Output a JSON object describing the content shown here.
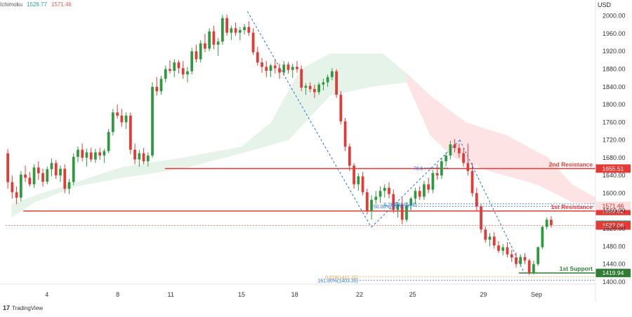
{
  "header": {
    "indicator": "Ichimoku",
    "value_a": "1528.77",
    "value_b": "1571.46",
    "currency": "USD"
  },
  "branding": {
    "name": "TradingView",
    "icon": "tradingview-logo-icon"
  },
  "colors": {
    "bull": "#26a69a",
    "bull_candle": "#2e9a3f",
    "bear": "#e53935",
    "resistance": "#e53935",
    "support": "#2e7d32",
    "fib_blue": "#1e6fd9",
    "fib_orange": "#f2a03d",
    "cloud_green": "#e3f2e6",
    "cloud_red": "#fde0e0"
  },
  "chart_data": {
    "type": "candlestick",
    "ylim": [
      1395,
      2020
    ],
    "y_ticks": [
      "2000.00",
      "1960.00",
      "1920.00",
      "1880.00",
      "1840.00",
      "1800.00",
      "1760.00",
      "1720.00",
      "1680.00",
      "1640.00",
      "1600.00",
      "1560.00",
      "1520.00",
      "1480.00",
      "1440.00",
      "1400.00"
    ],
    "x_ticks": [
      "4",
      "8",
      "11",
      "15",
      "18",
      "22",
      "25",
      "29",
      "Sep"
    ],
    "levels": [
      {
        "label": "2nd Resistance",
        "price": "1655.51",
        "kind": "resistance"
      },
      {
        "label": "1st Resistance",
        "price": "1559.82",
        "kind": "resistance"
      },
      {
        "label": "1st Support",
        "price": "1419.94",
        "kind": "support"
      }
    ],
    "price_tags": [
      {
        "price": "1571.46",
        "kind": "cloud"
      },
      {
        "price": "1528.77",
        "kind": "last"
      },
      {
        "price": "1527.06",
        "kind": "ref"
      }
    ],
    "fib_labels": [
      {
        "text": "0.786(1575.76)",
        "price": 1575.76,
        "color": "blue"
      },
      {
        "text": "50.00%(1570.37)",
        "price": 1570.37,
        "color": "blue"
      },
      {
        "text": "0.618(1411.20)",
        "price": 1411.2,
        "color": "orange"
      },
      {
        "text": "161.80%(1403.35)",
        "price": 1403.35,
        "color": "blue"
      },
      {
        "text": "78.6",
        "price": 1657,
        "color": "blue"
      }
    ],
    "candles": [
      [
        1690,
        1700,
        1610,
        1625
      ],
      [
        1625,
        1640,
        1588,
        1602
      ],
      [
        1602,
        1615,
        1575,
        1590
      ],
      [
        1590,
        1650,
        1582,
        1642
      ],
      [
        1642,
        1662,
        1625,
        1635
      ],
      [
        1635,
        1648,
        1615,
        1620
      ],
      [
        1620,
        1665,
        1612,
        1658
      ],
      [
        1658,
        1672,
        1630,
        1645
      ],
      [
        1645,
        1655,
        1615,
        1626
      ],
      [
        1626,
        1660,
        1620,
        1654
      ],
      [
        1654,
        1678,
        1638,
        1668
      ],
      [
        1668,
        1675,
        1632,
        1640
      ],
      [
        1640,
        1662,
        1625,
        1655
      ],
      [
        1655,
        1665,
        1600,
        1610
      ],
      [
        1610,
        1632,
        1598,
        1625
      ],
      [
        1625,
        1690,
        1618,
        1682
      ],
      [
        1682,
        1705,
        1670,
        1698
      ],
      [
        1698,
        1712,
        1672,
        1680
      ],
      [
        1680,
        1700,
        1660,
        1692
      ],
      [
        1692,
        1702,
        1670,
        1676
      ],
      [
        1676,
        1700,
        1668,
        1692
      ],
      [
        1692,
        1702,
        1675,
        1685
      ],
      [
        1685,
        1700,
        1668,
        1695
      ],
      [
        1695,
        1745,
        1690,
        1738
      ],
      [
        1738,
        1790,
        1730,
        1782
      ],
      [
        1782,
        1800,
        1768,
        1775
      ],
      [
        1775,
        1790,
        1750,
        1760
      ],
      [
        1760,
        1782,
        1745,
        1775
      ],
      [
        1775,
        1782,
        1688,
        1698
      ],
      [
        1698,
        1712,
        1665,
        1676
      ],
      [
        1676,
        1698,
        1660,
        1690
      ],
      [
        1690,
        1702,
        1665,
        1672
      ],
      [
        1672,
        1692,
        1660,
        1685
      ],
      [
        1685,
        1850,
        1680,
        1840
      ],
      [
        1840,
        1862,
        1820,
        1830
      ],
      [
        1830,
        1865,
        1822,
        1858
      ],
      [
        1858,
        1888,
        1850,
        1880
      ],
      [
        1880,
        1900,
        1870,
        1876
      ],
      [
        1876,
        1902,
        1862,
        1895
      ],
      [
        1895,
        1900,
        1870,
        1882
      ],
      [
        1882,
        1898,
        1858,
        1868
      ],
      [
        1868,
        1885,
        1850,
        1875
      ],
      [
        1875,
        1928,
        1868,
        1920
      ],
      [
        1920,
        1935,
        1895,
        1902
      ],
      [
        1902,
        1945,
        1895,
        1938
      ],
      [
        1938,
        1960,
        1918,
        1926
      ],
      [
        1926,
        1972,
        1920,
        1965
      ],
      [
        1965,
        1978,
        1925,
        1935
      ],
      [
        1935,
        1950,
        1910,
        1942
      ],
      [
        1942,
        2002,
        1935,
        1995
      ],
      [
        1995,
        2003,
        1955,
        1962
      ],
      [
        1962,
        1978,
        1945,
        1972
      ],
      [
        1972,
        1985,
        1955,
        1962
      ],
      [
        1962,
        1975,
        1945,
        1968
      ],
      [
        1968,
        1982,
        1958,
        1975
      ],
      [
        1975,
        1988,
        1955,
        1962
      ],
      [
        1962,
        1972,
        1912,
        1918
      ],
      [
        1918,
        1930,
        1888,
        1895
      ],
      [
        1895,
        1905,
        1872,
        1885
      ],
      [
        1885,
        1898,
        1862,
        1876
      ],
      [
        1876,
        1892,
        1862,
        1888
      ],
      [
        1888,
        1900,
        1870,
        1882
      ],
      [
        1882,
        1892,
        1858,
        1872
      ],
      [
        1872,
        1898,
        1865,
        1890
      ],
      [
        1890,
        1896,
        1870,
        1878
      ],
      [
        1878,
        1892,
        1860,
        1885
      ],
      [
        1885,
        1898,
        1872,
        1880
      ],
      [
        1880,
        1888,
        1830,
        1838
      ],
      [
        1838,
        1848,
        1822,
        1842
      ],
      [
        1842,
        1850,
        1828,
        1835
      ],
      [
        1835,
        1845,
        1815,
        1828
      ],
      [
        1828,
        1850,
        1822,
        1845
      ],
      [
        1845,
        1858,
        1832,
        1850
      ],
      [
        1850,
        1868,
        1840,
        1862
      ],
      [
        1862,
        1882,
        1855,
        1875
      ],
      [
        1875,
        1880,
        1815,
        1822
      ],
      [
        1822,
        1830,
        1755,
        1762
      ],
      [
        1762,
        1770,
        1695,
        1705
      ],
      [
        1705,
        1712,
        1650,
        1662
      ],
      [
        1662,
        1668,
        1610,
        1620
      ],
      [
        1620,
        1645,
        1605,
        1638
      ],
      [
        1638,
        1648,
        1595,
        1602
      ],
      [
        1602,
        1610,
        1552,
        1560
      ],
      [
        1560,
        1595,
        1540,
        1585
      ],
      [
        1585,
        1605,
        1575,
        1592
      ],
      [
        1592,
        1615,
        1578,
        1605
      ],
      [
        1605,
        1620,
        1590,
        1612
      ],
      [
        1612,
        1625,
        1588,
        1598
      ],
      [
        1598,
        1608,
        1555,
        1562
      ],
      [
        1562,
        1580,
        1545,
        1575
      ],
      [
        1575,
        1590,
        1530,
        1540
      ],
      [
        1540,
        1580,
        1535,
        1572
      ],
      [
        1572,
        1592,
        1560,
        1588
      ],
      [
        1588,
        1612,
        1575,
        1605
      ],
      [
        1605,
        1615,
        1585,
        1592
      ],
      [
        1592,
        1628,
        1585,
        1620
      ],
      [
        1620,
        1635,
        1600,
        1608
      ],
      [
        1608,
        1652,
        1600,
        1645
      ],
      [
        1645,
        1665,
        1630,
        1640
      ],
      [
        1640,
        1680,
        1632,
        1672
      ],
      [
        1672,
        1692,
        1660,
        1685
      ],
      [
        1685,
        1718,
        1676,
        1710
      ],
      [
        1710,
        1722,
        1692,
        1702
      ],
      [
        1702,
        1712,
        1680,
        1690
      ],
      [
        1690,
        1700,
        1660,
        1668
      ],
      [
        1668,
        1712,
        1640,
        1650
      ],
      [
        1650,
        1668,
        1592,
        1600
      ],
      [
        1600,
        1612,
        1560,
        1570
      ],
      [
        1570,
        1575,
        1510,
        1518
      ],
      [
        1518,
        1525,
        1488,
        1495
      ],
      [
        1495,
        1510,
        1480,
        1502
      ],
      [
        1502,
        1512,
        1475,
        1482
      ],
      [
        1482,
        1492,
        1465,
        1470
      ],
      [
        1470,
        1485,
        1460,
        1478
      ],
      [
        1478,
        1490,
        1455,
        1462
      ],
      [
        1462,
        1472,
        1445,
        1455
      ],
      [
        1455,
        1466,
        1432,
        1440
      ],
      [
        1440,
        1462,
        1435,
        1456
      ],
      [
        1456,
        1465,
        1440,
        1448
      ],
      [
        1448,
        1452,
        1415,
        1420
      ],
      [
        1420,
        1448,
        1416,
        1440
      ],
      [
        1440,
        1480,
        1436,
        1478
      ],
      [
        1478,
        1528,
        1474,
        1524
      ],
      [
        1524,
        1545,
        1518,
        1540
      ],
      [
        1540,
        1548,
        1522,
        1528
      ]
    ]
  }
}
